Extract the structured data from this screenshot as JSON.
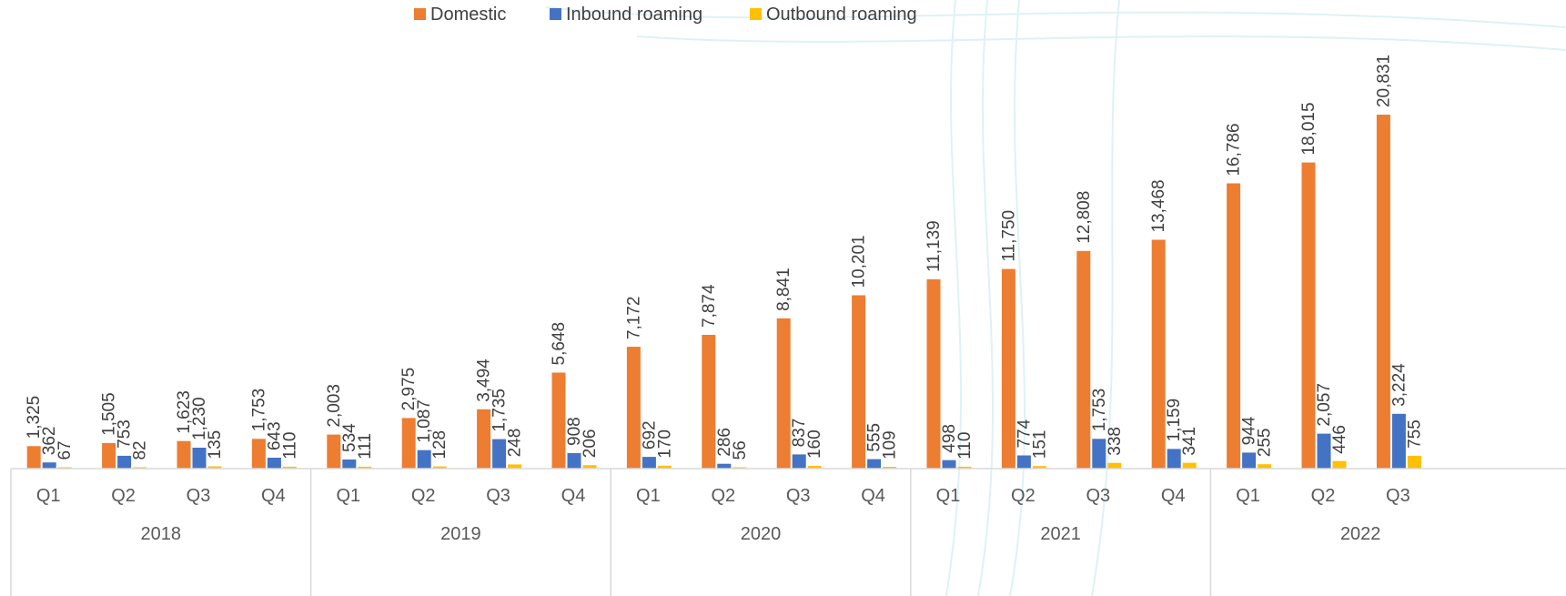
{
  "chart_data": {
    "type": "bar",
    "title": "",
    "xlabel": "",
    "ylabel": "",
    "ylim": [
      0,
      22000
    ],
    "grid": false,
    "legend_position": "top",
    "x": [
      {
        "year": "2018",
        "quarter": "Q1"
      },
      {
        "year": "2018",
        "quarter": "Q2"
      },
      {
        "year": "2018",
        "quarter": "Q3"
      },
      {
        "year": "2018",
        "quarter": "Q4"
      },
      {
        "year": "2019",
        "quarter": "Q1"
      },
      {
        "year": "2019",
        "quarter": "Q2"
      },
      {
        "year": "2019",
        "quarter": "Q3"
      },
      {
        "year": "2019",
        "quarter": "Q4"
      },
      {
        "year": "2020",
        "quarter": "Q1"
      },
      {
        "year": "2020",
        "quarter": "Q2"
      },
      {
        "year": "2020",
        "quarter": "Q3"
      },
      {
        "year": "2020",
        "quarter": "Q4"
      },
      {
        "year": "2021",
        "quarter": "Q1"
      },
      {
        "year": "2021",
        "quarter": "Q2"
      },
      {
        "year": "2021",
        "quarter": "Q3"
      },
      {
        "year": "2021",
        "quarter": "Q4"
      },
      {
        "year": "2022",
        "quarter": "Q1"
      },
      {
        "year": "2022",
        "quarter": "Q2"
      },
      {
        "year": "2022",
        "quarter": "Q3"
      }
    ],
    "years": [
      "2018",
      "2019",
      "2020",
      "2021",
      "2022"
    ],
    "series": [
      {
        "name": "Domestic",
        "color": "#ED7D31",
        "values": [
          1325,
          1505,
          1623,
          1753,
          2003,
          2975,
          3494,
          5648,
          7172,
          7874,
          8841,
          10201,
          11139,
          11750,
          12808,
          13468,
          16786,
          18015,
          20831
        ]
      },
      {
        "name": "Inbound roaming",
        "color": "#4472C4",
        "values": [
          362,
          753,
          1230,
          643,
          534,
          1087,
          1735,
          908,
          692,
          286,
          837,
          555,
          498,
          774,
          1753,
          1159,
          944,
          2057,
          3224
        ]
      },
      {
        "name": "Outbound roaming",
        "color": "#FFC000",
        "values": [
          67,
          82,
          135,
          110,
          111,
          128,
          248,
          206,
          170,
          56,
          160,
          109,
          110,
          151,
          338,
          341,
          255,
          446,
          755
        ]
      }
    ]
  }
}
